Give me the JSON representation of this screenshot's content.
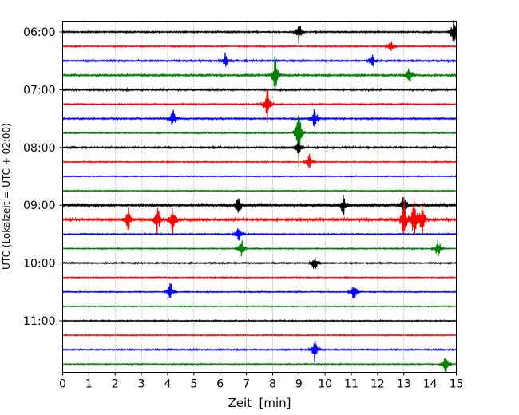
{
  "chart_data": {
    "type": "line",
    "title": "",
    "xlabel": "Zeit  [min]",
    "ylabel": "UTC (Lokalzeit = UTC + 02:00)",
    "xlim": [
      0,
      15
    ],
    "xticks": [
      0,
      1,
      2,
      3,
      4,
      5,
      6,
      7,
      8,
      9,
      10,
      11,
      12,
      13,
      14,
      15
    ],
    "vertical_grid": "dotted",
    "ylabels": [
      {
        "trace": 0,
        "label": "06:00"
      },
      {
        "trace": 4,
        "label": "07:00"
      },
      {
        "trace": 8,
        "label": "08:00"
      },
      {
        "trace": 12,
        "label": "09:00"
      },
      {
        "trace": 16,
        "label": "10:00"
      },
      {
        "trace": 20,
        "label": "11:00"
      }
    ],
    "trace_start_times": [
      "06:00",
      "06:15",
      "06:30",
      "06:45",
      "07:00",
      "07:15",
      "07:30",
      "07:45",
      "08:00",
      "08:15",
      "08:30",
      "08:45",
      "09:00",
      "09:15",
      "09:30",
      "09:45",
      "10:00",
      "10:15",
      "10:30",
      "10:45",
      "11:00",
      "11:15",
      "11:30",
      "11:45"
    ],
    "trace_colors": [
      "#000000",
      "#ff0000",
      "#0000ff",
      "#008000"
    ],
    "noise_level": [
      0.28,
      0.22,
      0.3,
      0.35,
      0.32,
      0.22,
      0.28,
      0.22,
      0.3,
      0.2,
      0.18,
      0.2,
      0.45,
      0.42,
      0.22,
      0.22,
      0.25,
      0.18,
      0.2,
      0.18,
      0.22,
      0.2,
      0.25,
      0.2
    ],
    "events": [
      {
        "trace": 0,
        "t": 9.0,
        "amp": 0.6
      },
      {
        "trace": 0,
        "t": 14.9,
        "amp": 0.8
      },
      {
        "trace": 1,
        "t": 12.5,
        "amp": 0.3
      },
      {
        "trace": 2,
        "t": 6.2,
        "amp": 0.4
      },
      {
        "trace": 2,
        "t": 11.8,
        "amp": 0.4
      },
      {
        "trace": 3,
        "t": 8.1,
        "amp": 1.2
      },
      {
        "trace": 3,
        "t": 13.2,
        "amp": 0.6
      },
      {
        "trace": 5,
        "t": 7.8,
        "amp": 1.0
      },
      {
        "trace": 6,
        "t": 4.2,
        "amp": 0.6
      },
      {
        "trace": 6,
        "t": 9.6,
        "amp": 0.7
      },
      {
        "trace": 7,
        "t": 9.0,
        "amp": 1.8
      },
      {
        "trace": 8,
        "t": 9.0,
        "amp": 0.5
      },
      {
        "trace": 9,
        "t": 9.4,
        "amp": 0.4
      },
      {
        "trace": 12,
        "t": 6.7,
        "amp": 0.7
      },
      {
        "trace": 12,
        "t": 10.7,
        "amp": 0.6
      },
      {
        "trace": 12,
        "t": 13.0,
        "amp": 0.6
      },
      {
        "trace": 13,
        "t": 2.5,
        "amp": 0.6
      },
      {
        "trace": 13,
        "t": 3.6,
        "amp": 0.9
      },
      {
        "trace": 13,
        "t": 4.2,
        "amp": 0.8
      },
      {
        "trace": 13,
        "t": 13.0,
        "amp": 1.2
      },
      {
        "trace": 13,
        "t": 13.4,
        "amp": 1.4
      },
      {
        "trace": 13,
        "t": 13.7,
        "amp": 0.9
      },
      {
        "trace": 14,
        "t": 6.7,
        "amp": 0.5
      },
      {
        "trace": 15,
        "t": 6.8,
        "amp": 0.6
      },
      {
        "trace": 15,
        "t": 14.3,
        "amp": 0.6
      },
      {
        "trace": 16,
        "t": 9.6,
        "amp": 0.5
      },
      {
        "trace": 18,
        "t": 4.1,
        "amp": 0.6
      },
      {
        "trace": 18,
        "t": 11.1,
        "amp": 0.6
      },
      {
        "trace": 22,
        "t": 9.6,
        "amp": 0.6
      },
      {
        "trace": 23,
        "t": 14.6,
        "amp": 0.6
      }
    ]
  }
}
